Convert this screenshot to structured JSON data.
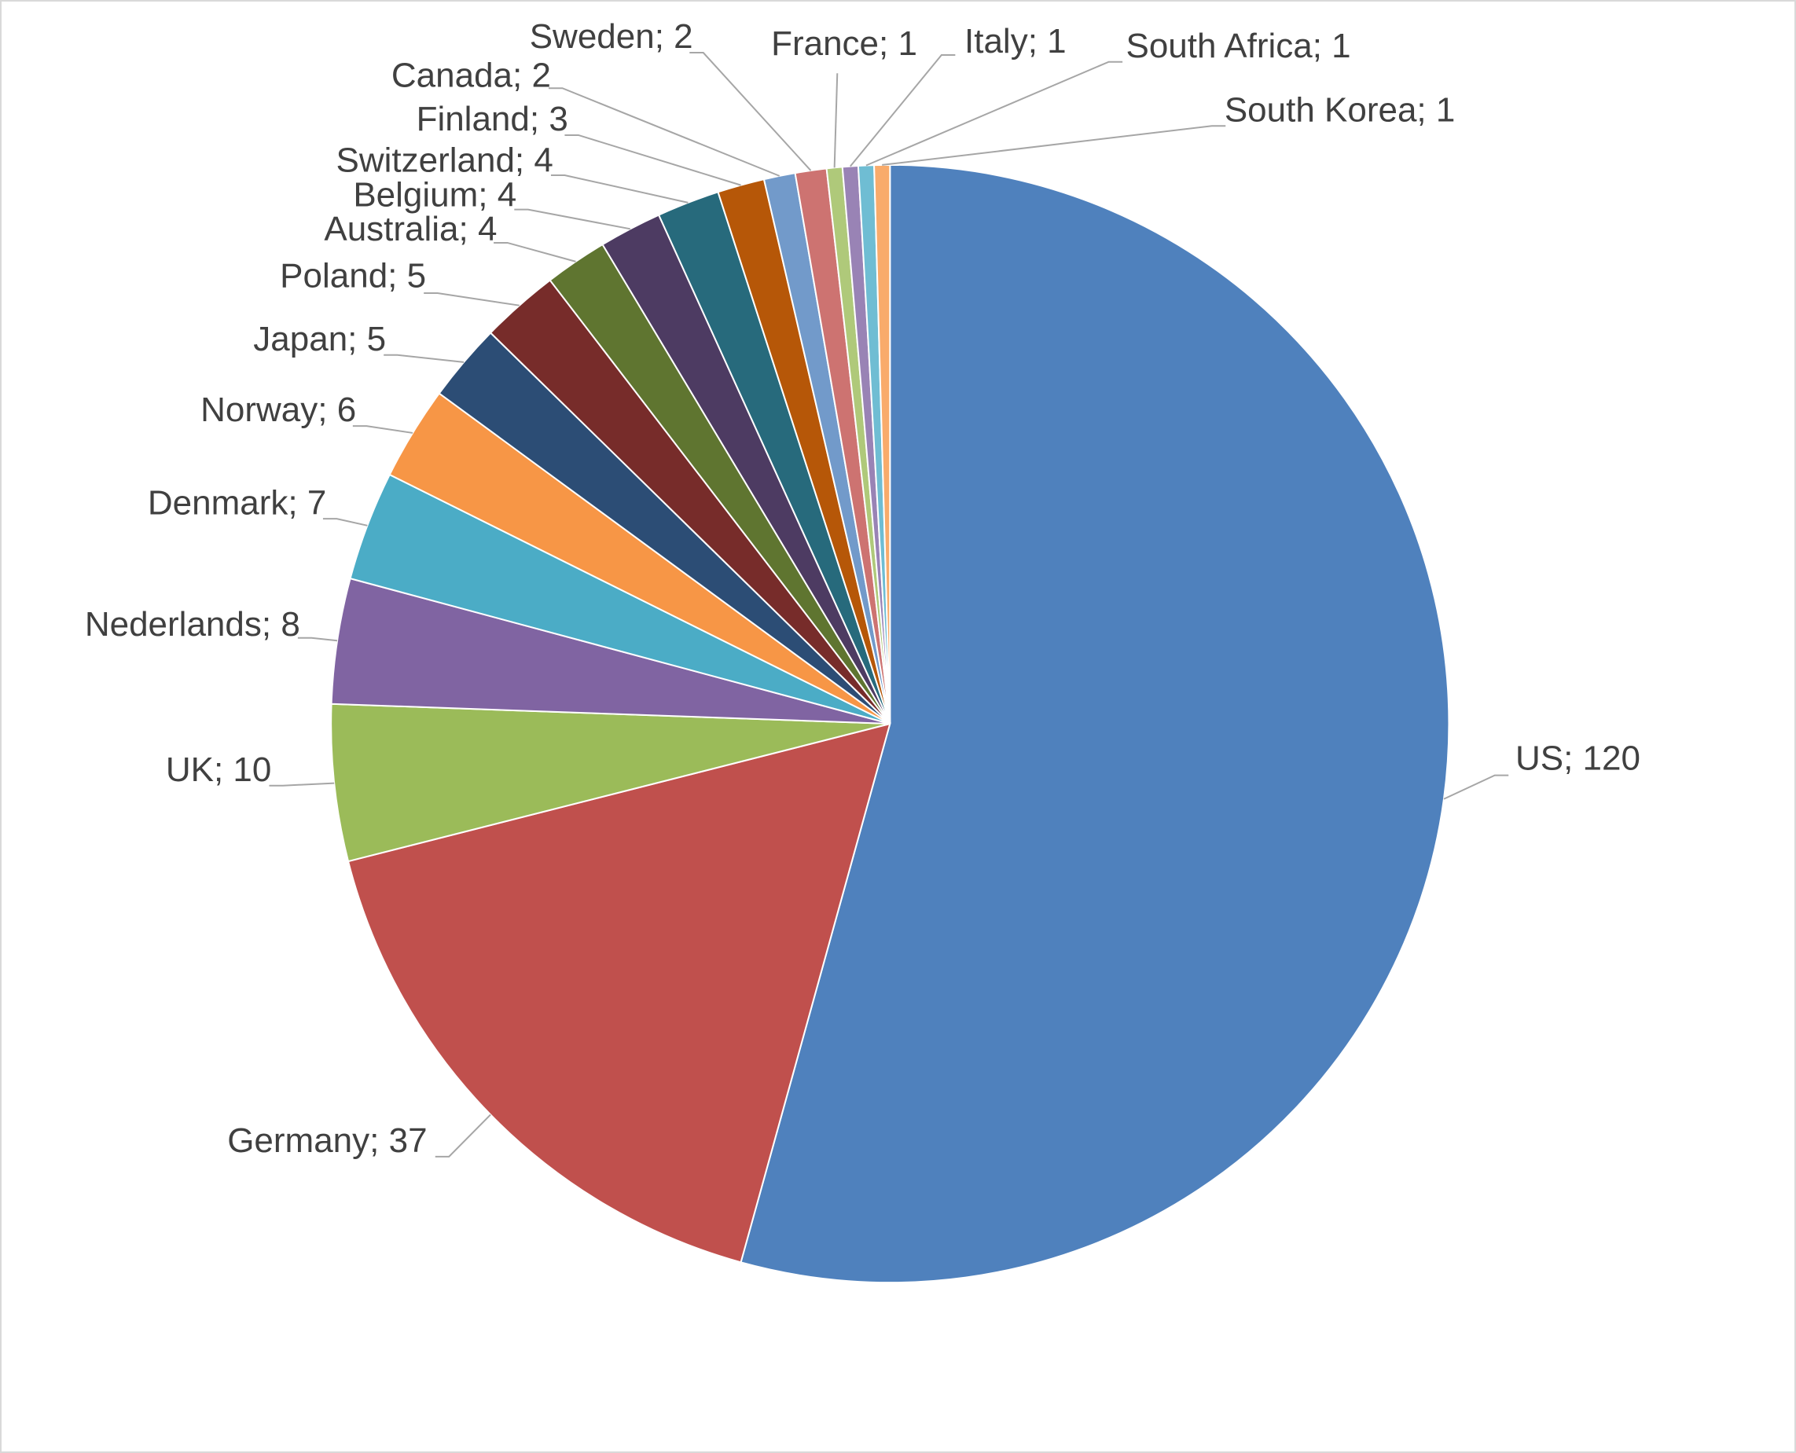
{
  "chart_data": {
    "type": "pie",
    "values": [
      120,
      37,
      10,
      8,
      7,
      6,
      5,
      5,
      4,
      4,
      4,
      3,
      2,
      2,
      1,
      1,
      1,
      1
    ],
    "value_labels": [
      "US; 120",
      "Germany; 37",
      "UK; 10",
      "Nederlands; 8",
      "Denmark; 7",
      "Norway; 6",
      "Japan; 5",
      "Poland; 5",
      "Australia; 4",
      "Belgium; 4",
      "Switzerland; 4",
      "Finland; 3",
      "Canada; 2",
      "Sweden; 2",
      "France; 1",
      "Italy; 1",
      "South Africa; 1",
      "South Korea; 1"
    ],
    "colors": [
      "#4f81bd",
      "#c0504d",
      "#9bbb59",
      "#8064a2",
      "#4bacc6",
      "#f79646",
      "#2c4d75",
      "#772c2a",
      "#5f7530",
      "#4d3b62",
      "#276a7c",
      "#b65708",
      "#729aca",
      "#cd7371",
      "#afc97a",
      "#9983b5",
      "#6fbdd3",
      "#f9ab6b"
    ]
  }
}
